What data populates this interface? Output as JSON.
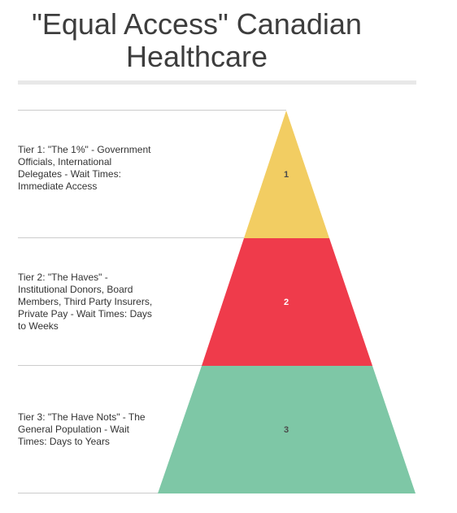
{
  "title": "\"Equal Access\" Canadian Healthcare",
  "tiers": [
    {
      "number": "1",
      "label": "Tier 1: \"The 1%\" - Government Officials, International Delegates - Wait Times: Immediate Access",
      "color": "#f2cd62",
      "num_color": "#4a4a4a"
    },
    {
      "number": "2",
      "label": "Tier 2: \"The Haves\" - Institutional Donors, Board Members, Third Party Insurers, Private Pay - Wait Times: Days to Weeks",
      "color": "#ef3b4b",
      "num_color": "#ffffff"
    },
    {
      "number": "3",
      "label": "Tier 3: \"The Have Nots\" - The General Population - Wait Times: Days to Years",
      "color": "#7ec7a6",
      "num_color": "#4a4a4a"
    }
  ]
}
